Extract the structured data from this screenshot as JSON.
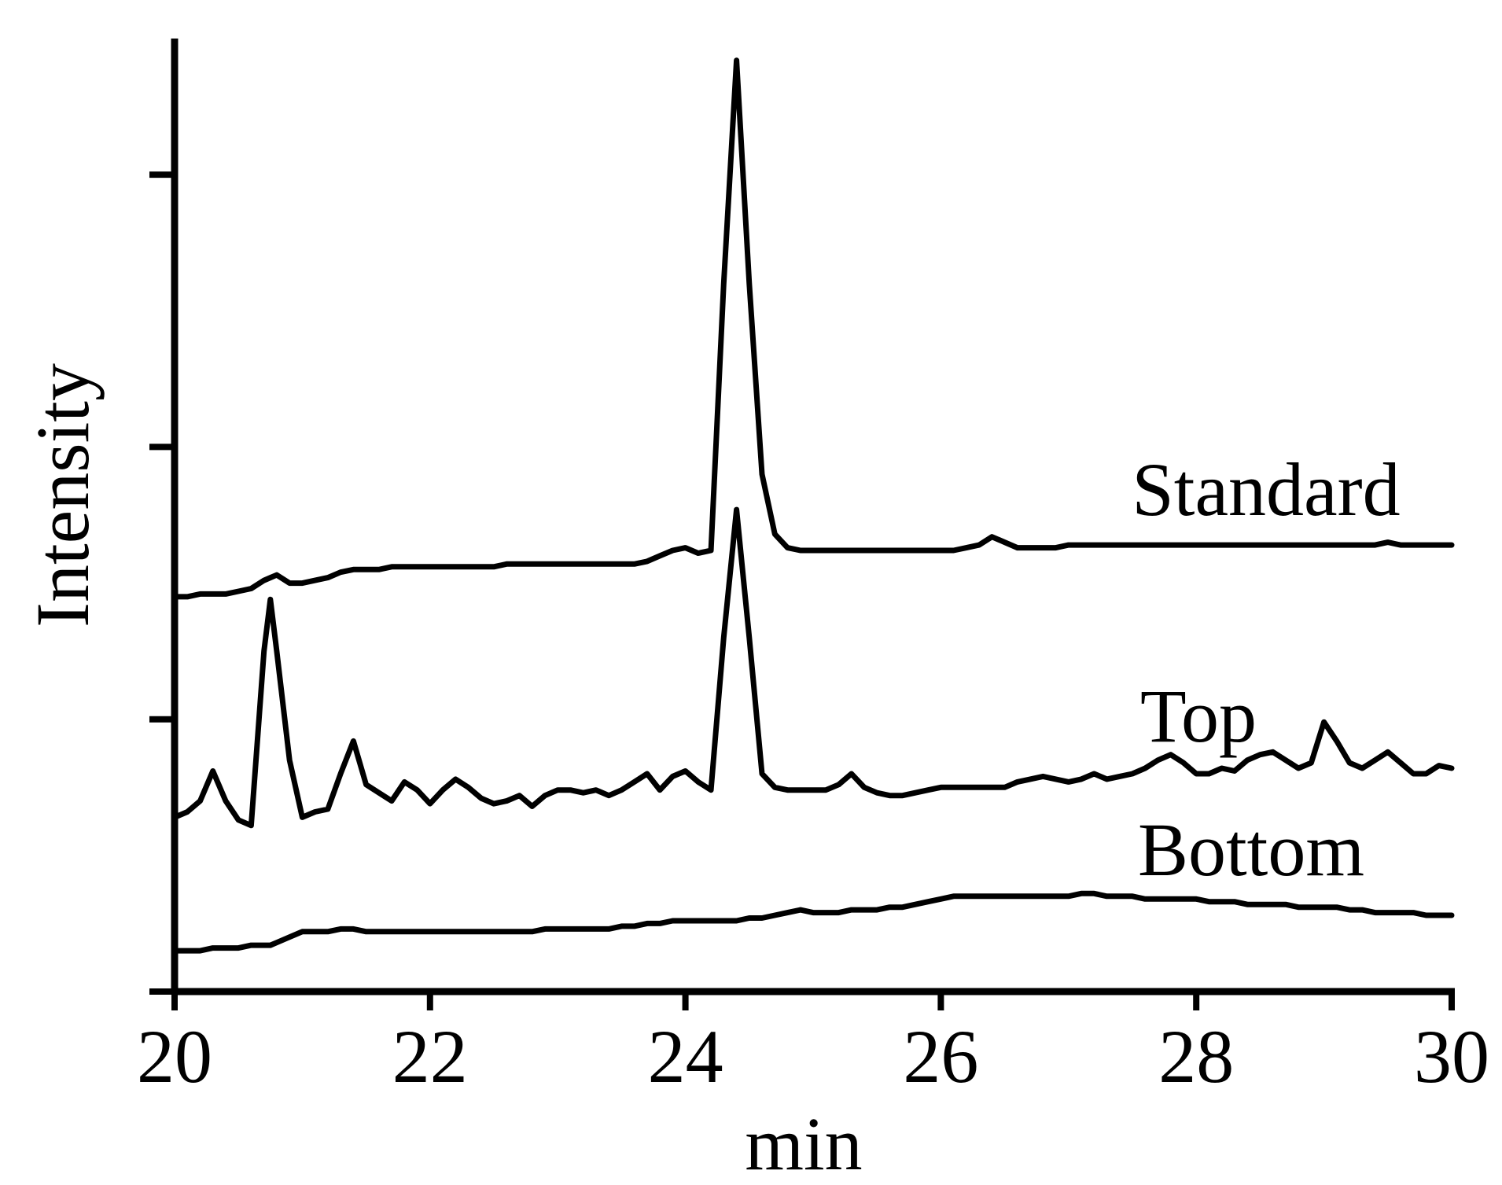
{
  "chart_data": {
    "type": "line",
    "x_label": "min",
    "y_label": "Intensity",
    "x": [
      20.0,
      20.1,
      20.2,
      20.3,
      20.4,
      20.5,
      20.6,
      20.7,
      20.75,
      20.8,
      20.9,
      21.0,
      21.1,
      21.2,
      21.3,
      21.4,
      21.5,
      21.6,
      21.7,
      21.8,
      21.9,
      22.0,
      22.1,
      22.2,
      22.3,
      22.4,
      22.5,
      22.6,
      22.7,
      22.8,
      22.9,
      23.0,
      23.1,
      23.2,
      23.3,
      23.4,
      23.5,
      23.6,
      23.7,
      23.8,
      23.9,
      24.0,
      24.1,
      24.2,
      24.3,
      24.4,
      24.5,
      24.6,
      24.7,
      24.8,
      24.9,
      25.0,
      25.1,
      25.2,
      25.3,
      25.4,
      25.5,
      25.6,
      25.7,
      25.8,
      25.9,
      26.0,
      26.1,
      26.2,
      26.3,
      26.4,
      26.5,
      26.6,
      26.7,
      26.8,
      26.9,
      27.0,
      27.1,
      27.2,
      27.3,
      27.4,
      27.5,
      27.6,
      27.7,
      27.8,
      27.9,
      28.0,
      28.1,
      28.2,
      28.3,
      28.4,
      28.5,
      28.6,
      28.7,
      28.8,
      28.9,
      29.0,
      29.1,
      29.2,
      29.3,
      29.4,
      29.5,
      29.6,
      29.7,
      29.8,
      29.9,
      30.0
    ],
    "series": [
      {
        "name": "Standard",
        "color": "#000000",
        "values": [
          1.45,
          1.45,
          1.46,
          1.46,
          1.46,
          1.47,
          1.48,
          1.51,
          1.52,
          1.53,
          1.5,
          1.5,
          1.51,
          1.52,
          1.54,
          1.55,
          1.55,
          1.55,
          1.56,
          1.56,
          1.56,
          1.56,
          1.56,
          1.56,
          1.56,
          1.56,
          1.56,
          1.57,
          1.57,
          1.57,
          1.57,
          1.57,
          1.57,
          1.57,
          1.57,
          1.57,
          1.57,
          1.57,
          1.58,
          1.6,
          1.62,
          1.63,
          1.61,
          1.62,
          2.6,
          3.42,
          2.6,
          1.9,
          1.68,
          1.63,
          1.62,
          1.62,
          1.62,
          1.62,
          1.62,
          1.62,
          1.62,
          1.62,
          1.62,
          1.62,
          1.62,
          1.62,
          1.62,
          1.63,
          1.64,
          1.67,
          1.65,
          1.63,
          1.63,
          1.63,
          1.63,
          1.64,
          1.64,
          1.64,
          1.64,
          1.64,
          1.64,
          1.64,
          1.64,
          1.64,
          1.64,
          1.64,
          1.64,
          1.64,
          1.64,
          1.64,
          1.64,
          1.64,
          1.64,
          1.64,
          1.64,
          1.64,
          1.64,
          1.64,
          1.64,
          1.64,
          1.65,
          1.64,
          1.64,
          1.64,
          1.64,
          1.64
        ]
      },
      {
        "name": "Top",
        "color": "#000000",
        "values": [
          0.64,
          0.66,
          0.7,
          0.81,
          0.7,
          0.63,
          0.61,
          1.25,
          1.44,
          1.25,
          0.85,
          0.64,
          0.66,
          0.67,
          0.8,
          0.92,
          0.76,
          0.73,
          0.7,
          0.77,
          0.74,
          0.69,
          0.74,
          0.78,
          0.75,
          0.71,
          0.69,
          0.7,
          0.72,
          0.68,
          0.72,
          0.74,
          0.74,
          0.73,
          0.74,
          0.72,
          0.74,
          0.77,
          0.8,
          0.74,
          0.79,
          0.81,
          0.77,
          0.74,
          1.3,
          1.77,
          1.3,
          0.8,
          0.75,
          0.74,
          0.74,
          0.74,
          0.74,
          0.76,
          0.8,
          0.75,
          0.73,
          0.72,
          0.72,
          0.73,
          0.74,
          0.75,
          0.75,
          0.75,
          0.75,
          0.75,
          0.75,
          0.77,
          0.78,
          0.79,
          0.78,
          0.77,
          0.78,
          0.8,
          0.78,
          0.79,
          0.8,
          0.82,
          0.85,
          0.87,
          0.84,
          0.8,
          0.8,
          0.82,
          0.81,
          0.85,
          0.87,
          0.88,
          0.85,
          0.82,
          0.84,
          0.99,
          0.92,
          0.84,
          0.82,
          0.85,
          0.88,
          0.84,
          0.8,
          0.8,
          0.83,
          0.82
        ]
      },
      {
        "name": "Bottom",
        "color": "#000000",
        "values": [
          0.15,
          0.15,
          0.15,
          0.16,
          0.16,
          0.16,
          0.17,
          0.17,
          0.17,
          0.18,
          0.2,
          0.22,
          0.22,
          0.22,
          0.23,
          0.23,
          0.22,
          0.22,
          0.22,
          0.22,
          0.22,
          0.22,
          0.22,
          0.22,
          0.22,
          0.22,
          0.22,
          0.22,
          0.22,
          0.22,
          0.23,
          0.23,
          0.23,
          0.23,
          0.23,
          0.23,
          0.24,
          0.24,
          0.25,
          0.25,
          0.26,
          0.26,
          0.26,
          0.26,
          0.26,
          0.26,
          0.27,
          0.27,
          0.28,
          0.29,
          0.3,
          0.29,
          0.29,
          0.29,
          0.3,
          0.3,
          0.3,
          0.31,
          0.31,
          0.32,
          0.33,
          0.34,
          0.35,
          0.35,
          0.35,
          0.35,
          0.35,
          0.35,
          0.35,
          0.35,
          0.35,
          0.35,
          0.36,
          0.36,
          0.35,
          0.35,
          0.35,
          0.34,
          0.34,
          0.34,
          0.34,
          0.34,
          0.33,
          0.33,
          0.33,
          0.32,
          0.32,
          0.32,
          0.32,
          0.31,
          0.31,
          0.31,
          0.31,
          0.3,
          0.3,
          0.29,
          0.29,
          0.29,
          0.29,
          0.28,
          0.28,
          0.28
        ]
      }
    ],
    "xlim": [
      20,
      30
    ],
    "xticks": [
      20,
      22,
      24,
      26,
      28,
      30
    ],
    "ylim": [
      0,
      3.5
    ],
    "yticks": [
      0,
      1,
      2,
      3
    ],
    "grid": false
  }
}
